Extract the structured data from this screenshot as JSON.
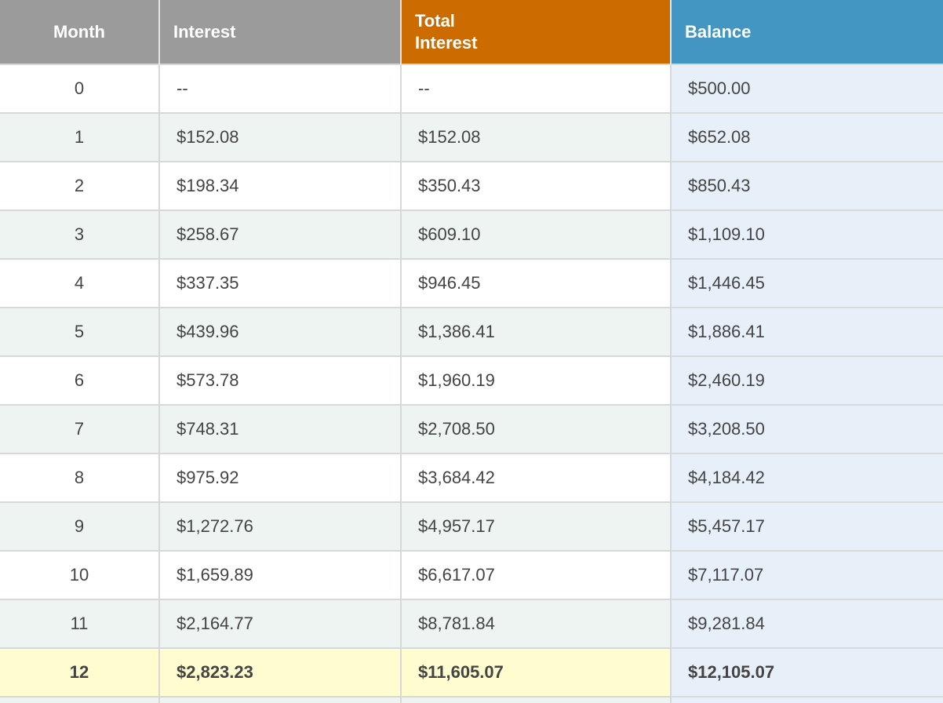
{
  "table": {
    "headers": {
      "month": "Month",
      "interest": "Interest",
      "total_interest_line1": "Total",
      "total_interest_line2": "Interest",
      "balance": "Balance"
    },
    "rows": [
      {
        "month": "0",
        "interest": "--",
        "total_interest": "--",
        "balance": "$500.00"
      },
      {
        "month": "1",
        "interest": "$152.08",
        "total_interest": "$152.08",
        "balance": "$652.08"
      },
      {
        "month": "2",
        "interest": "$198.34",
        "total_interest": "$350.43",
        "balance": "$850.43"
      },
      {
        "month": "3",
        "interest": "$258.67",
        "total_interest": "$609.10",
        "balance": "$1,109.10"
      },
      {
        "month": "4",
        "interest": "$337.35",
        "total_interest": "$946.45",
        "balance": "$1,446.45"
      },
      {
        "month": "5",
        "interest": "$439.96",
        "total_interest": "$1,386.41",
        "balance": "$1,886.41"
      },
      {
        "month": "6",
        "interest": "$573.78",
        "total_interest": "$1,960.19",
        "balance": "$2,460.19"
      },
      {
        "month": "7",
        "interest": "$748.31",
        "total_interest": "$2,708.50",
        "balance": "$3,208.50"
      },
      {
        "month": "8",
        "interest": "$975.92",
        "total_interest": "$3,684.42",
        "balance": "$4,184.42"
      },
      {
        "month": "9",
        "interest": "$1,272.76",
        "total_interest": "$4,957.17",
        "balance": "$5,457.17"
      },
      {
        "month": "10",
        "interest": "$1,659.89",
        "total_interest": "$6,617.07",
        "balance": "$7,117.07"
      },
      {
        "month": "11",
        "interest": "$2,164.77",
        "total_interest": "$8,781.84",
        "balance": "$9,281.84"
      },
      {
        "month": "12",
        "interest": "$2,823.23",
        "total_interest": "$11,605.07",
        "balance": "$12,105.07"
      }
    ]
  },
  "colors": {
    "header_gray": "#9b9b9b",
    "header_total_interest": "#cc6c00",
    "header_balance": "#4396c2",
    "row_alt": "#edf4f1",
    "balance_column": "#e7f0f8",
    "final_row_highlight": "#fffdcf"
  }
}
